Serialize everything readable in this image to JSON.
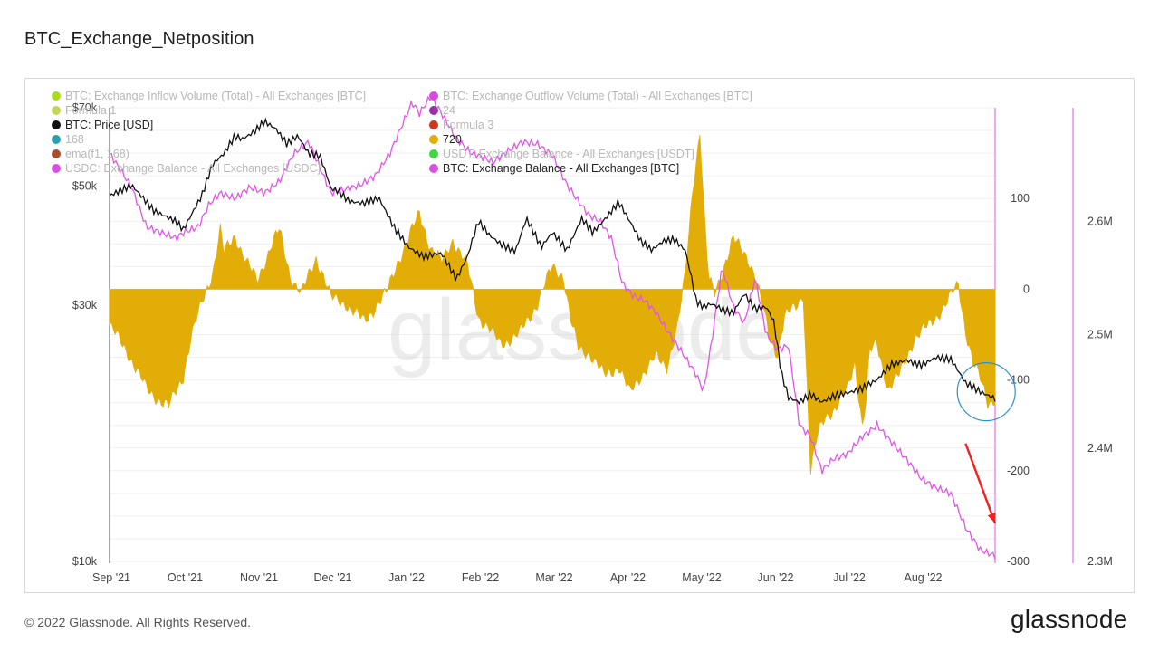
{
  "page": {
    "title": "BTC_Exchange_Netposition",
    "copyright": "© 2022 Glassnode. All Rights Reserved.",
    "brand": "glassnode",
    "watermark": "glassnode"
  },
  "colors": {
    "netposition": "#e3ad08",
    "price": "#111111",
    "balance": "#e055e8",
    "axis_magenta": "#e055e8",
    "annotation_arrow": "#f2201e",
    "annotation_circle": "#2b8fd6"
  },
  "chart_data": {
    "type": "mixed",
    "title": "BTC_Exchange_Netposition",
    "x_ticks": [
      "Sep '21",
      "Oct '21",
      "Nov '21",
      "Dec '21",
      "Jan '22",
      "Feb '22",
      "Mar '22",
      "Apr '22",
      "May '22",
      "Jun '22",
      "Jul '22",
      "Aug '22"
    ],
    "x_domain": [
      0,
      12
    ],
    "left_axis": {
      "scale": "log",
      "ticks": [
        "$10k",
        "$30k",
        "$50k",
        "$70k"
      ],
      "tick_values": [
        10000,
        30000,
        50000,
        70000
      ],
      "range": [
        10000,
        70000
      ]
    },
    "middle_axis": {
      "ticks": [
        "100",
        "0",
        "-100",
        "-200",
        "-300"
      ],
      "tick_values": [
        100,
        0,
        -100,
        -200,
        -300
      ],
      "range": [
        -300,
        200
      ]
    },
    "right_axis": {
      "ticks": [
        "2.6M",
        "2.5M",
        "2.4M",
        "2.3M"
      ],
      "tick_values": [
        2.6,
        2.5,
        2.4,
        2.3
      ],
      "range": [
        2.3,
        2.7
      ]
    },
    "legend": [
      {
        "label": "BTC: Exchange Inflow Volume (Total) - All Exchanges [BTC]",
        "color": "#aadc1e",
        "active": false
      },
      {
        "label": "BTC: Exchange Outflow Volume (Total) - All Exchanges [BTC]",
        "color": "#d949e0",
        "active": false
      },
      {
        "label": "Formula 1",
        "color": "#c8d45a",
        "active": false
      },
      {
        "label": "24",
        "color": "#9b2fa8",
        "active": false
      },
      {
        "label": "BTC: Price [USD]",
        "color": "#111111",
        "active": true
      },
      {
        "label": "Formula 3",
        "color": "#d0361c",
        "active": false
      },
      {
        "label": "168",
        "color": "#2aa0b0",
        "active": false
      },
      {
        "label": "720",
        "color": "#e3ad08",
        "active": true
      },
      {
        "label": "ema(f1, 168)",
        "color": "#a8502e",
        "active": false
      },
      {
        "label": "USDT: Exchange Balance - All Exchanges [USDT]",
        "color": "#3ed83e",
        "active": false
      },
      {
        "label": "USDC: Exchange Balance - All Exchanges [USDC]",
        "color": "#d94fe0",
        "active": false
      },
      {
        "label": "BTC: Exchange Balance - All Exchanges [BTC]",
        "color": "#d94fe0",
        "active": true
      }
    ],
    "series": [
      {
        "name": "720",
        "axis": "middle",
        "kind": "area",
        "x": [
          0,
          0.25,
          0.5,
          0.8,
          1.0,
          1.1,
          1.25,
          1.4,
          1.5,
          1.55,
          1.7,
          1.85,
          2.0,
          2.2,
          2.3,
          2.45,
          2.6,
          2.8,
          2.9,
          3.0,
          3.2,
          3.3,
          3.45,
          3.6,
          3.75,
          3.9,
          4.05,
          4.2,
          4.35,
          4.5,
          4.65,
          4.85,
          5.0,
          5.15,
          5.3,
          5.55,
          5.8,
          6.0,
          6.15,
          6.25,
          6.35,
          6.5,
          6.7,
          6.9,
          7.05,
          7.2,
          7.4,
          7.55,
          7.7,
          7.8,
          7.9,
          8.0,
          8.06,
          8.12,
          8.2,
          8.3,
          8.45,
          8.55,
          8.65,
          8.75,
          8.95,
          9.05,
          9.15,
          9.3,
          9.4,
          9.5,
          9.6,
          9.7,
          9.85,
          10.0,
          10.1,
          10.2,
          10.25,
          10.3,
          10.4,
          10.55,
          10.7,
          10.9,
          11.1,
          11.3,
          11.5,
          11.6,
          11.7,
          11.8,
          11.9,
          12.0
        ],
        "values": [
          -40,
          -70,
          -110,
          -130,
          -95,
          -55,
          -15,
          20,
          65,
          40,
          60,
          30,
          10,
          50,
          65,
          15,
          -5,
          35,
          15,
          -10,
          -15,
          -25,
          -35,
          -20,
          -5,
          30,
          55,
          85,
          45,
          30,
          55,
          25,
          -30,
          -45,
          -60,
          -50,
          -15,
          25,
          15,
          -35,
          -65,
          -70,
          -95,
          -85,
          -115,
          -95,
          -75,
          -85,
          -40,
          15,
          110,
          175,
          80,
          10,
          -5,
          20,
          55,
          45,
          35,
          15,
          -55,
          -70,
          -30,
          -20,
          -5,
          -200,
          -160,
          -140,
          -130,
          -110,
          -80,
          -150,
          -125,
          -70,
          -60,
          -110,
          -95,
          -55,
          -40,
          -20,
          5,
          -45,
          -80,
          -100,
          -125,
          -120
        ]
      },
      {
        "name": "BTC: Price [USD]",
        "axis": "left",
        "kind": "line",
        "x": [
          0,
          0.3,
          0.6,
          0.9,
          1.0,
          1.1,
          1.25,
          1.4,
          1.55,
          1.7,
          1.8,
          1.95,
          2.1,
          2.25,
          2.4,
          2.55,
          2.7,
          2.85,
          3.0,
          3.1,
          3.25,
          3.45,
          3.65,
          3.85,
          4.05,
          4.25,
          4.5,
          4.7,
          4.85,
          5.0,
          5.15,
          5.3,
          5.5,
          5.65,
          5.85,
          6.0,
          6.2,
          6.4,
          6.55,
          6.75,
          6.9,
          7.05,
          7.2,
          7.35,
          7.5,
          7.65,
          7.8,
          7.95,
          8.05,
          8.15,
          8.3,
          8.45,
          8.6,
          8.75,
          8.9,
          9.0,
          9.1,
          9.2,
          9.35,
          9.5,
          9.65,
          9.8,
          10.0,
          10.2,
          10.4,
          10.6,
          10.8,
          11.0,
          11.2,
          11.4,
          11.6,
          11.8,
          12.0
        ],
        "values": [
          48000,
          50200,
          45000,
          43000,
          41500,
          44000,
          48000,
          55000,
          57500,
          62000,
          61200,
          63000,
          66000,
          64000,
          60000,
          62000,
          57500,
          57000,
          49500,
          49000,
          46800,
          46500,
          47500,
          42000,
          38500,
          37000,
          37500,
          33500,
          37000,
          43000,
          40500,
          39000,
          37800,
          43500,
          38500,
          41000,
          38000,
          43500,
          41000,
          44000,
          46700,
          43000,
          39500,
          38000,
          39500,
          39800,
          38000,
          30500,
          29800,
          30200,
          29500,
          29000,
          31500,
          29500,
          29800,
          28000,
          22500,
          20200,
          19800,
          20500,
          19800,
          20300,
          20600,
          21000,
          21800,
          23300,
          23700,
          23200,
          24000,
          23800,
          21500,
          20700,
          20100
        ]
      },
      {
        "name": "BTC: Exchange Balance - All Exchanges [BTC]",
        "axis": "right",
        "kind": "line",
        "x": [
          0,
          0.3,
          0.5,
          0.7,
          0.9,
          1.0,
          1.2,
          1.35,
          1.5,
          1.7,
          1.9,
          2.1,
          2.3,
          2.5,
          2.7,
          2.9,
          3.0,
          3.2,
          3.4,
          3.6,
          3.8,
          3.9,
          4.0,
          4.1,
          4.2,
          4.35,
          4.5,
          4.7,
          4.9,
          5.0,
          5.2,
          5.4,
          5.6,
          5.8,
          6.0,
          6.2,
          6.35,
          6.5,
          6.65,
          6.8,
          6.95,
          7.1,
          7.25,
          7.4,
          7.55,
          7.7,
          7.85,
          7.95,
          8.05,
          8.15,
          8.3,
          8.45,
          8.6,
          8.75,
          8.9,
          9.05,
          9.2,
          9.35,
          9.5,
          9.65,
          9.8,
          10.0,
          10.2,
          10.4,
          10.6,
          10.8,
          11.0,
          11.2,
          11.4,
          11.6,
          11.8,
          12.0
        ],
        "values": [
          2.66,
          2.63,
          2.595,
          2.59,
          2.585,
          2.59,
          2.595,
          2.615,
          2.625,
          2.62,
          2.63,
          2.625,
          2.635,
          2.66,
          2.67,
          2.64,
          2.625,
          2.628,
          2.632,
          2.64,
          2.66,
          2.675,
          2.69,
          2.705,
          2.695,
          2.71,
          2.695,
          2.673,
          2.66,
          2.658,
          2.652,
          2.662,
          2.67,
          2.668,
          2.658,
          2.632,
          2.618,
          2.605,
          2.6,
          2.585,
          2.545,
          2.534,
          2.53,
          2.52,
          2.504,
          2.49,
          2.475,
          2.465,
          2.45,
          2.49,
          2.56,
          2.525,
          2.51,
          2.55,
          2.5,
          2.487,
          2.49,
          2.42,
          2.41,
          2.38,
          2.39,
          2.395,
          2.41,
          2.42,
          2.405,
          2.39,
          2.373,
          2.365,
          2.36,
          2.33,
          2.31,
          2.305
        ]
      }
    ],
    "annotations": [
      {
        "type": "arrow",
        "from_x": 11.6,
        "from_v": -170,
        "to_x": 12.0,
        "to_v": -258,
        "axis": "middle"
      },
      {
        "type": "circle",
        "center_x": 11.88,
        "center_v": -113,
        "axis": "middle"
      }
    ]
  }
}
